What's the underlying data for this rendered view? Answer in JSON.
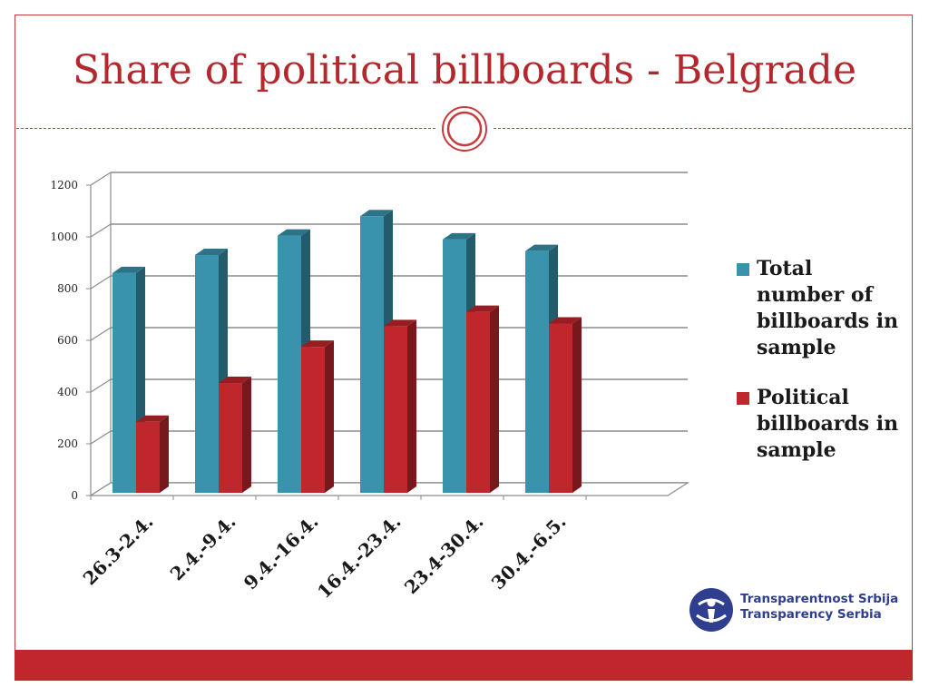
{
  "slide": {
    "title": "Share of political billboards - Belgrade",
    "accent_color": "#c0272d"
  },
  "logo": {
    "icon": "transparency-serbia-globe-icon",
    "line1": "Transparentnost Srbija",
    "line2": "Transparency Serbia"
  },
  "chart_data": {
    "type": "bar",
    "title": "",
    "xlabel": "",
    "ylabel": "",
    "ylim": [
      0,
      1200
    ],
    "yticks": [
      "0",
      "200",
      "400",
      "600",
      "800",
      "1000",
      "1200"
    ],
    "grid": true,
    "legend_position": "right",
    "categories": [
      "26.3-2.4.",
      "2.4.-9.4.",
      "9.4.-16.4.",
      "16.4.-23.4.",
      "23.4-30.4.",
      "30.4.-6.5."
    ],
    "series": [
      {
        "name": "Total number of billboards in sample",
        "color": "#3a93ad",
        "values": [
          860,
          930,
          1005,
          1080,
          990,
          945
        ]
      },
      {
        "name": "Political billboards in sample",
        "color": "#c0272d",
        "values": [
          285,
          435,
          575,
          655,
          710,
          665
        ]
      }
    ]
  }
}
